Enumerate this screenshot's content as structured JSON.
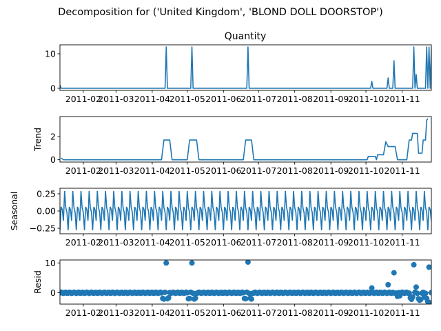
{
  "chart_data": {
    "type": "line",
    "title": "Decomposition for ('United Kingdom', 'BLOND DOLL DOORSTOP')",
    "x_tick_labels": [
      "2011-02",
      "2011-03",
      "2011-04",
      "2011-05",
      "2011-06",
      "2011-07",
      "2011-08",
      "2011-09",
      "2011-10",
      "2011-11"
    ],
    "x_range": [
      "2011-01-12",
      "2011-11-26"
    ],
    "color": "#1f77b4",
    "panels": [
      {
        "name": "observed",
        "type": "line",
        "title": "Quantity",
        "ylabel": "",
        "ylim": [
          -0.6,
          12.6
        ],
        "yticks": [
          0,
          10
        ],
        "points": [
          [
            "2011-01-12",
            1
          ],
          [
            "2011-01-13",
            0
          ],
          [
            "2011-04-12",
            0
          ],
          [
            "2011-04-13",
            12
          ],
          [
            "2011-04-14",
            0
          ],
          [
            "2011-05-04",
            0
          ],
          [
            "2011-05-05",
            12
          ],
          [
            "2011-05-06",
            0
          ],
          [
            "2011-06-21",
            0
          ],
          [
            "2011-06-22",
            12
          ],
          [
            "2011-06-23",
            0
          ],
          [
            "2011-10-05",
            0
          ],
          [
            "2011-10-06",
            2
          ],
          [
            "2011-10-07",
            0
          ],
          [
            "2011-10-19",
            0
          ],
          [
            "2011-10-20",
            3
          ],
          [
            "2011-10-21",
            0
          ],
          [
            "2011-10-24",
            0
          ],
          [
            "2011-10-25",
            8
          ],
          [
            "2011-10-26",
            0
          ],
          [
            "2011-11-10",
            0
          ],
          [
            "2011-11-11",
            12
          ],
          [
            "2011-11-12",
            0
          ],
          [
            "2011-11-13",
            4
          ],
          [
            "2011-11-14",
            0
          ],
          [
            "2011-11-21",
            0
          ],
          [
            "2011-11-22",
            12
          ],
          [
            "2011-11-23",
            0
          ],
          [
            "2011-11-24",
            12
          ],
          [
            "2011-11-25",
            0
          ],
          [
            "2011-11-26",
            12
          ]
        ]
      },
      {
        "name": "trend",
        "type": "line",
        "title": "",
        "ylabel": "Trend",
        "ylim": [
          -0.2,
          3.75
        ],
        "yticks": [
          0,
          2
        ],
        "points": [
          [
            "2011-01-13",
            0.15
          ],
          [
            "2011-01-15",
            0
          ],
          [
            "2011-04-09",
            0
          ],
          [
            "2011-04-11",
            1.71
          ],
          [
            "2011-04-16",
            1.71
          ],
          [
            "2011-04-18",
            0
          ],
          [
            "2011-05-01",
            0
          ],
          [
            "2011-05-03",
            1.71
          ],
          [
            "2011-05-09",
            1.71
          ],
          [
            "2011-05-11",
            0
          ],
          [
            "2011-06-18",
            0
          ],
          [
            "2011-06-20",
            1.71
          ],
          [
            "2011-06-25",
            1.71
          ],
          [
            "2011-06-27",
            0
          ],
          [
            "2011-10-02",
            0
          ],
          [
            "2011-10-03",
            0.29
          ],
          [
            "2011-10-09",
            0.29
          ],
          [
            "2011-10-10",
            0
          ],
          [
            "2011-10-11",
            0.43
          ],
          [
            "2011-10-16",
            0.43
          ],
          [
            "2011-10-18",
            1.57
          ],
          [
            "2011-10-20",
            1.14
          ],
          [
            "2011-10-26",
            1.14
          ],
          [
            "2011-10-28",
            0
          ],
          [
            "2011-11-05",
            0
          ],
          [
            "2011-11-07",
            1.71
          ],
          [
            "2011-11-09",
            1.71
          ],
          [
            "2011-11-10",
            2.29
          ],
          [
            "2011-11-14",
            2.29
          ],
          [
            "2011-11-15",
            0.57
          ],
          [
            "2011-11-18",
            0.57
          ],
          [
            "2011-11-19",
            1.71
          ],
          [
            "2011-11-21",
            1.71
          ],
          [
            "2011-11-22",
            3.43
          ],
          [
            "2011-11-23",
            3.57
          ]
        ]
      },
      {
        "name": "seasonal",
        "type": "line",
        "title": "",
        "ylabel": "Seasonal",
        "ylim": [
          -0.33,
          0.33
        ],
        "yticks": [
          -0.25,
          0.0,
          0.25
        ],
        "ytick_labels": [
          "−0.25",
          "0.00",
          "0.25"
        ],
        "period_days": 7,
        "weekly_pattern": [
          -0.28,
          0.06,
          0.02,
          -0.14,
          0.29,
          0.05,
          -0.02
        ]
      },
      {
        "name": "resid",
        "type": "scatter",
        "title": "",
        "ylabel": "Resid",
        "ylim": [
          -3.8,
          11.0
        ],
        "yticks": [
          0,
          10
        ],
        "zero_line": true,
        "baseline_noise": 0.2,
        "points": [
          [
            "2011-04-13",
            10.0
          ],
          [
            "2011-04-10",
            -1.9
          ],
          [
            "2011-04-11",
            -2.1
          ],
          [
            "2011-04-14",
            -2.0
          ],
          [
            "2011-04-15",
            -1.7
          ],
          [
            "2011-05-05",
            10.0
          ],
          [
            "2011-05-02",
            -2.0
          ],
          [
            "2011-05-03",
            -1.9
          ],
          [
            "2011-05-07",
            -2.1
          ],
          [
            "2011-05-08",
            -1.8
          ],
          [
            "2011-06-22",
            10.3
          ],
          [
            "2011-06-19",
            -1.9
          ],
          [
            "2011-06-20",
            -2.0
          ],
          [
            "2011-06-24",
            -1.8
          ],
          [
            "2011-06-25",
            -2.1
          ],
          [
            "2011-10-06",
            1.6
          ],
          [
            "2011-10-20",
            2.7
          ],
          [
            "2011-10-25",
            6.7
          ],
          [
            "2011-10-28",
            -1.2
          ],
          [
            "2011-10-30",
            -1.0
          ],
          [
            "2011-11-11",
            9.4
          ],
          [
            "2011-11-13",
            1.9
          ],
          [
            "2011-11-08",
            -1.7
          ],
          [
            "2011-11-09",
            -2.2
          ],
          [
            "2011-11-10",
            -1.4
          ],
          [
            "2011-11-15",
            -2.0
          ],
          [
            "2011-11-16",
            -2.5
          ],
          [
            "2011-11-17",
            -2.2
          ],
          [
            "2011-11-20",
            -1.4
          ],
          [
            "2011-11-22",
            -1.9
          ],
          [
            "2011-11-23",
            -3.0
          ],
          [
            "2011-11-24",
            8.6
          ],
          [
            "2011-11-25",
            -3.4
          ]
        ]
      }
    ]
  }
}
